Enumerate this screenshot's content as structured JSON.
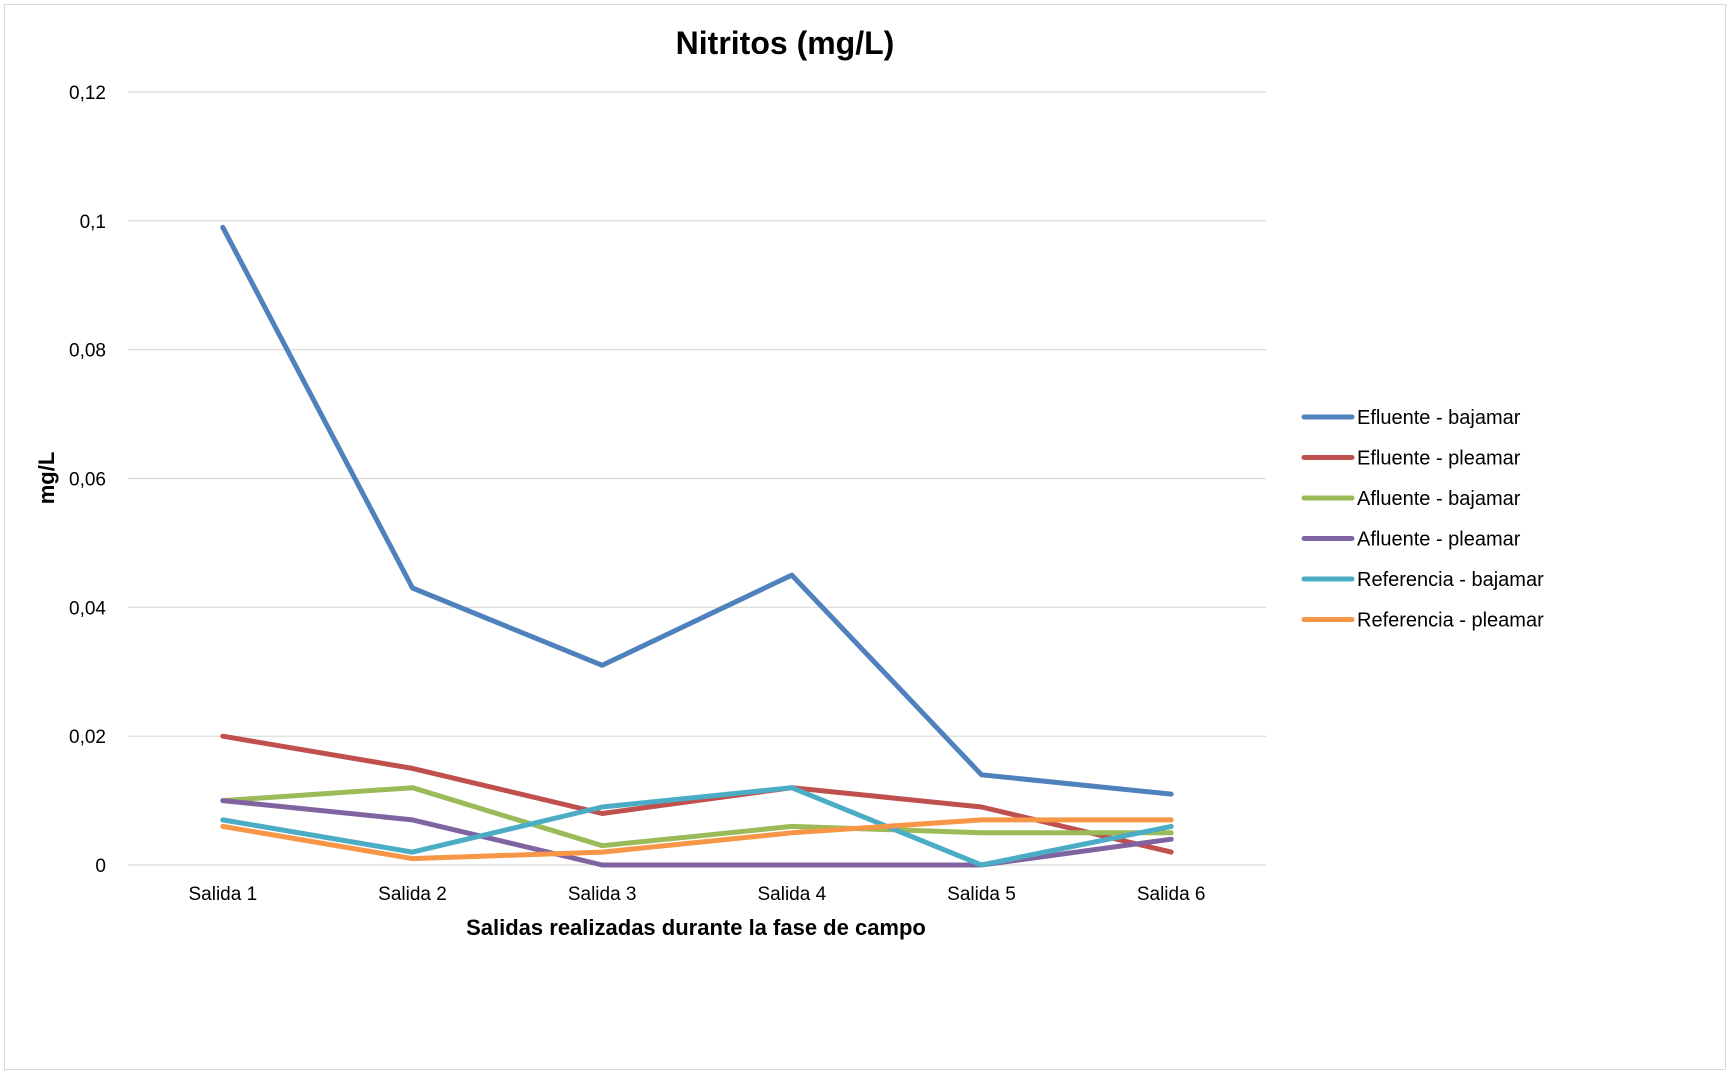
{
  "chart_data": {
    "type": "line",
    "title": "Nitritos (mg/L)",
    "xlabel": "Salidas realizadas durante la fase de campo",
    "ylabel": "mg/L",
    "categories": [
      "Salida 1",
      "Salida 2",
      "Salida 3",
      "Salida 4",
      "Salida 5",
      "Salida 6"
    ],
    "ylim": [
      0,
      0.12
    ],
    "yticks": [
      0,
      0.02,
      0.04,
      0.06,
      0.08,
      0.1,
      0.12
    ],
    "ytick_labels": [
      "0",
      "0,02",
      "0,04",
      "0,06",
      "0,08",
      "0,1",
      "0,12"
    ],
    "grid": true,
    "legend_position": "right",
    "series": [
      {
        "name": "Efluente - bajamar",
        "color": "#4f81bd",
        "values": [
          0.099,
          0.043,
          0.031,
          0.045,
          0.014,
          0.011
        ]
      },
      {
        "name": "Efluente - pleamar",
        "color": "#c0504d",
        "values": [
          0.02,
          0.015,
          0.008,
          0.012,
          0.009,
          0.002
        ]
      },
      {
        "name": "Afluente - bajamar",
        "color": "#9bbb59",
        "values": [
          0.01,
          0.012,
          0.003,
          0.006,
          0.005,
          0.005
        ]
      },
      {
        "name": "Afluente - pleamar",
        "color": "#8064a2",
        "values": [
          0.01,
          0.007,
          0.0,
          0.0,
          0.0,
          0.004
        ]
      },
      {
        "name": "Referencia - bajamar",
        "color": "#4bacc6",
        "values": [
          0.007,
          0.002,
          0.009,
          0.012,
          0.0,
          0.006
        ]
      },
      {
        "name": "Referencia - pleamar",
        "color": "#f79646",
        "values": [
          0.006,
          0.001,
          0.002,
          0.005,
          0.007,
          0.007
        ]
      }
    ]
  }
}
